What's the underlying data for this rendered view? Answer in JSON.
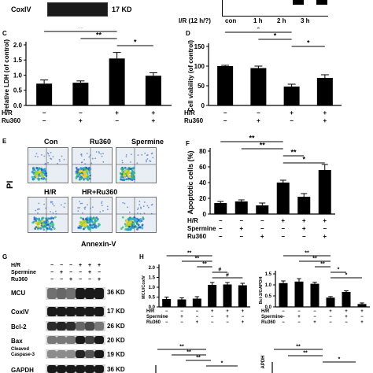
{
  "top": {
    "coxiv_label": "CoxIV",
    "coxiv_kd": "17 KD",
    "ir_label": "I/R (12 h/?)",
    "times": [
      "con",
      "1 h",
      "2 h",
      "3 h"
    ]
  },
  "panel_letters": {
    "c": "C",
    "d": "D",
    "e": "E",
    "f": "F",
    "g": "G",
    "h": "H"
  },
  "flow": {
    "titles": [
      "Con",
      "Ru360",
      "Spermine",
      "H/R",
      "HR+Ru360"
    ],
    "y_label": "PI",
    "x_label": "Annexin-V"
  },
  "treatments": {
    "hr": "H/R",
    "ru360": "Ru360",
    "spermine": "Spermine"
  },
  "blot_g": {
    "rows": [
      "H/R",
      "Spermine",
      "Ru360"
    ],
    "proteins": [
      {
        "name": "MCU",
        "kd": "36 KD"
      },
      {
        "name": "CoxIV",
        "kd": "17 KD"
      },
      {
        "name": "Bcl-2",
        "kd": "26 KD"
      },
      {
        "name": "Bax",
        "kd": "20 KD"
      },
      {
        "name": "Cleaved\nCaspase-3",
        "kd": "19 KD"
      },
      {
        "name": "GAPDH",
        "kd": "36 KD"
      }
    ]
  },
  "colors": {
    "bar": "#000000",
    "band": "#1a1a1a",
    "flow_bg": "#e8eef4"
  },
  "chart_data": [
    {
      "id": "C",
      "type": "bar",
      "ylabel": "relative LDH (of control)",
      "ylim": [
        0,
        2.0
      ],
      "yticks": [
        0.0,
        0.5,
        1.0,
        1.5,
        2.0
      ],
      "categories": [
        "1",
        "2",
        "3",
        "4"
      ],
      "values": [
        0.72,
        0.75,
        1.55,
        0.98
      ],
      "errors": [
        0.12,
        0.06,
        0.2,
        0.1
      ],
      "rows": [
        {
          "label": "H/R",
          "marks": [
            "−",
            "−",
            "+",
            "+"
          ]
        },
        {
          "label": "Ru360",
          "marks": [
            "−",
            "+",
            "−",
            "+"
          ]
        }
      ],
      "annotations": [
        {
          "text": "**",
          "from": 0,
          "to": 2
        },
        {
          "text": "**",
          "from": 1,
          "to": 2
        },
        {
          "text": "*",
          "from": 2,
          "to": 3
        }
      ]
    },
    {
      "id": "D",
      "type": "bar",
      "ylabel": "Cell viability (of control)",
      "ylim": [
        0,
        150
      ],
      "yticks": [
        0,
        50,
        100,
        150
      ],
      "categories": [
        "1",
        "2",
        "3",
        "4"
      ],
      "values": [
        100,
        95,
        48,
        70
      ],
      "errors": [
        2,
        5,
        6,
        8
      ],
      "rows": [
        {
          "label": "H/R",
          "marks": [
            "−",
            "−",
            "+",
            "+"
          ]
        },
        {
          "label": "Ru360",
          "marks": [
            "−",
            "+",
            "−",
            "+"
          ]
        }
      ],
      "annotations": [
        {
          "text": "*",
          "from": 0,
          "to": 2
        },
        {
          "text": "*",
          "from": 1,
          "to": 2
        },
        {
          "text": "*",
          "from": 2,
          "to": 3
        }
      ]
    },
    {
      "id": "F",
      "type": "bar",
      "ylabel": "Apoptotic cells (%)",
      "ylim": [
        0,
        80
      ],
      "yticks": [
        0,
        20,
        40,
        60,
        80
      ],
      "categories": [
        "1",
        "2",
        "3",
        "4",
        "5",
        "6"
      ],
      "values": [
        14,
        16,
        11,
        40,
        22,
        56
      ],
      "errors": [
        2,
        2,
        3,
        3,
        4,
        7
      ],
      "rows": [
        {
          "label": "H/R",
          "marks": [
            "−",
            "−",
            "−",
            "+",
            "+",
            "+"
          ]
        },
        {
          "label": "Spermine",
          "marks": [
            "−",
            "+",
            "−",
            "−",
            "+",
            "−"
          ]
        },
        {
          "label": "Ru360",
          "marks": [
            "−",
            "−",
            "+",
            "−",
            "−",
            "+"
          ]
        }
      ],
      "annotations": [
        {
          "text": "**",
          "from": 0,
          "to": 3
        },
        {
          "text": "**",
          "from": 1,
          "to": 3
        },
        {
          "text": "**",
          "from": 3,
          "to": 4
        },
        {
          "text": "*",
          "from": 3,
          "to": 5
        }
      ]
    },
    {
      "id": "H1",
      "type": "bar",
      "ylabel": "MCU/CoxIV",
      "ylim": [
        0,
        2.0
      ],
      "yticks": [
        0.0,
        0.5,
        1.0,
        1.5,
        2.0
      ],
      "categories": [
        "1",
        "2",
        "3",
        "4",
        "5",
        "6"
      ],
      "values": [
        0.4,
        0.38,
        0.42,
        1.12,
        1.14,
        1.1
      ],
      "errors": [
        0.1,
        0.08,
        0.1,
        0.12,
        0.1,
        0.1
      ],
      "rows": [
        {
          "label": "H/R",
          "marks": [
            "−",
            "−",
            "−",
            "+",
            "+",
            "+"
          ]
        },
        {
          "label": "Spermine",
          "marks": [
            "−",
            "+",
            "−",
            "−",
            "+",
            "−"
          ]
        },
        {
          "label": "Ru360",
          "marks": [
            "−",
            "−",
            "+",
            "−",
            "−",
            "+"
          ]
        }
      ],
      "annotations": [
        {
          "text": "**",
          "from": 0,
          "to": 3
        },
        {
          "text": "**",
          "from": 1,
          "to": 3
        },
        {
          "text": "**",
          "from": 2,
          "to": 3
        },
        {
          "text": "#",
          "from": 3,
          "to": 4
        },
        {
          "text": "#",
          "from": 3,
          "to": 5
        }
      ]
    },
    {
      "id": "H2",
      "type": "bar",
      "ylabel": "Bcl-2/GAPDH",
      "ylim": [
        0,
        1.5
      ],
      "yticks": [
        0.0,
        0.5,
        1.0,
        1.5
      ],
      "categories": [
        "1",
        "2",
        "3",
        "4",
        "5",
        "6"
      ],
      "values": [
        1.08,
        1.15,
        1.05,
        0.42,
        0.68,
        0.13
      ],
      "errors": [
        0.1,
        0.13,
        0.07,
        0.05,
        0.05,
        0.05
      ],
      "rows": [
        {
          "label": "H/R",
          "marks": [
            "−",
            "−",
            "−",
            "+",
            "+",
            "+"
          ]
        },
        {
          "label": "Spermine",
          "marks": [
            "−",
            "+",
            "−",
            "−",
            "+",
            "−"
          ]
        },
        {
          "label": "Ru360",
          "marks": [
            "−",
            "−",
            "+",
            "−",
            "−",
            "+"
          ]
        }
      ],
      "annotations": [
        {
          "text": "**",
          "from": 0,
          "to": 3
        },
        {
          "text": "**",
          "from": 1,
          "to": 3
        },
        {
          "text": "**",
          "from": 2,
          "to": 3
        },
        {
          "text": "*",
          "from": 3,
          "to": 4
        },
        {
          "text": "*",
          "from": 3,
          "to": 5
        }
      ]
    }
  ],
  "partial_bottom": {
    "left_annotations": [
      "**",
      "**",
      "**",
      "*"
    ],
    "right_annotations": [
      "**",
      "**",
      "*"
    ],
    "right_ylabel": "APDH"
  }
}
